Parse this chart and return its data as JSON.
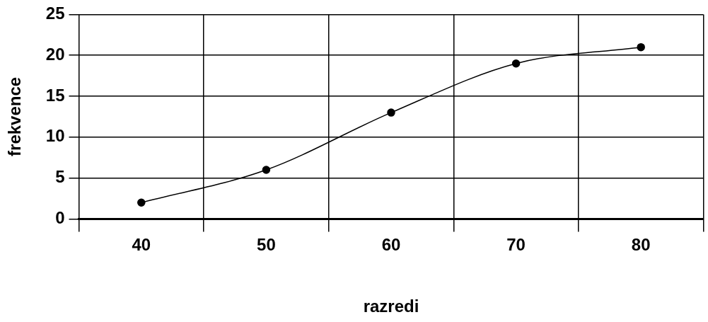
{
  "chart_data": {
    "type": "line",
    "xlabel": "razredi",
    "ylabel": "frekvence",
    "categories": [
      "40",
      "50",
      "60",
      "70",
      "80"
    ],
    "series": [
      {
        "color": "#000000",
        "values": [
          2,
          6,
          13,
          19,
          21
        ]
      }
    ],
    "ylim": [
      0,
      25
    ],
    "yticks": [
      0,
      5,
      10,
      15,
      20,
      25
    ],
    "grid": true,
    "legend": false,
    "marker": "circle",
    "line_style": "solid"
  }
}
